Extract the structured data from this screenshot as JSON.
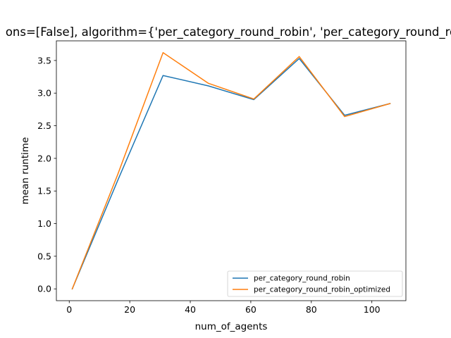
{
  "chart_data": {
    "type": "line",
    "title": "ons=[False], algorithm={'per_category_round_robin', 'per_category_round_ro",
    "xlabel": "num_of_agents",
    "ylabel": "mean runtime",
    "xlim": [
      -4.25,
      111.25
    ],
    "ylim": [
      -0.181,
      3.801
    ],
    "xticks": [
      0,
      20,
      40,
      60,
      80,
      100
    ],
    "yticks": [
      0.0,
      0.5,
      1.0,
      1.5,
      2.0,
      2.5,
      3.0,
      3.5
    ],
    "xtick_labels": [
      "0",
      "20",
      "40",
      "60",
      "80",
      "100"
    ],
    "ytick_labels": [
      "0.0",
      "0.5",
      "1.0",
      "1.5",
      "2.0",
      "2.5",
      "3.0",
      "3.5"
    ],
    "x": [
      1,
      16,
      31,
      46,
      61,
      76,
      91,
      106
    ],
    "series": [
      {
        "name": "per_category_round_robin",
        "color": "#1f77b4",
        "values": [
          0.0,
          1.66,
          3.27,
          3.11,
          2.9,
          3.53,
          2.66,
          2.84
        ]
      },
      {
        "name": "per_category_round_robin_optimized",
        "color": "#ff7f0e",
        "values": [
          0.0,
          1.75,
          3.62,
          3.15,
          2.91,
          3.56,
          2.64,
          2.84
        ]
      }
    ],
    "grid": false,
    "legend_position": "lower-right"
  }
}
